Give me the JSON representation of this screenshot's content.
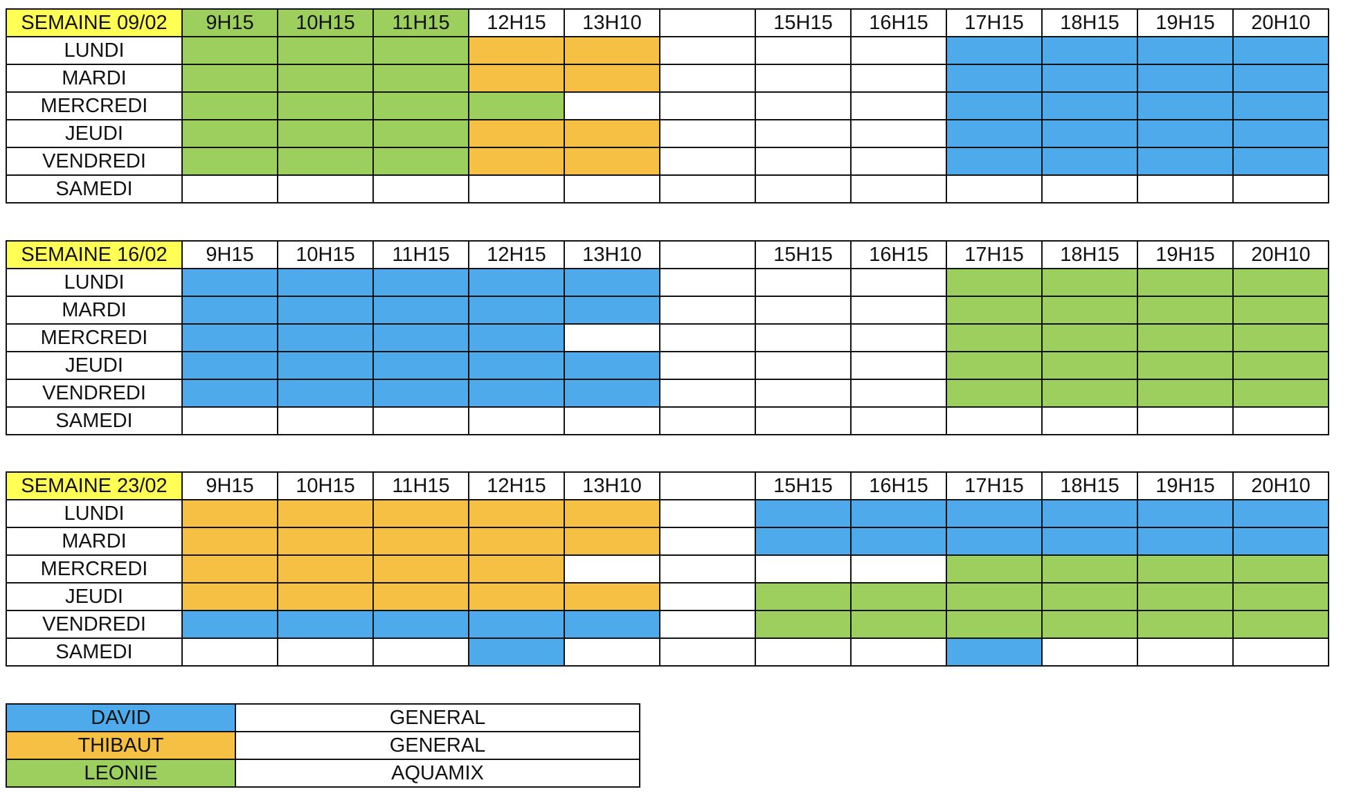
{
  "weeks": [
    {
      "label": "SEMAINE 09/02",
      "times": [
        "9H15",
        "10H15",
        "11H15",
        "12H15",
        "13H10",
        null,
        "15H15",
        "16H15",
        "17H15",
        "18H15",
        "19H15",
        "20H10"
      ],
      "rows": [
        {
          "day": "LUNDI",
          "cells": [
            2,
            2,
            2,
            1,
            1,
            null,
            null,
            null,
            0,
            0,
            0,
            0
          ]
        },
        {
          "day": "MARDI",
          "cells": [
            2,
            2,
            2,
            1,
            1,
            null,
            null,
            null,
            0,
            0,
            0,
            0
          ]
        },
        {
          "day": "MERCREDI",
          "cells": [
            2,
            2,
            2,
            2,
            null,
            null,
            null,
            null,
            0,
            0,
            0,
            0
          ]
        },
        {
          "day": "JEUDI",
          "cells": [
            2,
            2,
            2,
            1,
            1,
            null,
            null,
            null,
            0,
            0,
            0,
            0
          ]
        },
        {
          "day": "VENDREDI",
          "cells": [
            2,
            2,
            2,
            1,
            1,
            null,
            null,
            null,
            0,
            0,
            0,
            0
          ]
        },
        {
          "day": "SAMEDI",
          "cells": [
            null,
            null,
            null,
            null,
            null,
            null,
            null,
            null,
            null,
            null,
            null,
            null
          ]
        }
      ]
    },
    {
      "label": "SEMAINE 16/02",
      "times": [
        "9H15",
        "10H15",
        "11H15",
        "12H15",
        "13H10",
        null,
        "15H15",
        "16H15",
        "17H15",
        "18H15",
        "19H15",
        "20H10"
      ],
      "rows": [
        {
          "day": "LUNDI",
          "cells": [
            0,
            0,
            0,
            0,
            0,
            null,
            null,
            null,
            2,
            2,
            2,
            2
          ]
        },
        {
          "day": "MARDI",
          "cells": [
            0,
            0,
            0,
            0,
            0,
            null,
            null,
            null,
            2,
            2,
            2,
            2
          ]
        },
        {
          "day": "MERCREDI",
          "cells": [
            0,
            0,
            0,
            0,
            null,
            null,
            null,
            null,
            2,
            2,
            2,
            2
          ]
        },
        {
          "day": "JEUDI",
          "cells": [
            0,
            0,
            0,
            0,
            0,
            null,
            null,
            null,
            2,
            2,
            2,
            2
          ]
        },
        {
          "day": "VENDREDI",
          "cells": [
            0,
            0,
            0,
            0,
            0,
            null,
            null,
            null,
            2,
            2,
            2,
            2
          ]
        },
        {
          "day": "SAMEDI",
          "cells": [
            null,
            null,
            null,
            null,
            null,
            null,
            null,
            null,
            null,
            null,
            null,
            null
          ]
        }
      ]
    },
    {
      "label": "SEMAINE 23/02",
      "times": [
        "9H15",
        "10H15",
        "11H15",
        "12H15",
        "13H10",
        null,
        "15H15",
        "16H15",
        "17H15",
        "18H15",
        "19H15",
        "20H10"
      ],
      "rows": [
        {
          "day": "LUNDI",
          "cells": [
            1,
            1,
            1,
            1,
            1,
            null,
            0,
            0,
            0,
            0,
            0,
            0
          ]
        },
        {
          "day": "MARDI",
          "cells": [
            1,
            1,
            1,
            1,
            1,
            null,
            0,
            0,
            0,
            0,
            0,
            0
          ]
        },
        {
          "day": "MERCREDI",
          "cells": [
            1,
            1,
            1,
            1,
            null,
            null,
            null,
            null,
            2,
            2,
            2,
            2
          ]
        },
        {
          "day": "JEUDI",
          "cells": [
            1,
            1,
            1,
            1,
            1,
            null,
            2,
            2,
            2,
            2,
            2,
            2
          ]
        },
        {
          "day": "VENDREDI",
          "cells": [
            0,
            0,
            0,
            0,
            0,
            null,
            2,
            2,
            2,
            2,
            2,
            2
          ]
        },
        {
          "day": "SAMEDI",
          "cells": [
            null,
            null,
            null,
            0,
            null,
            null,
            null,
            null,
            0,
            null,
            null,
            null
          ]
        }
      ]
    }
  ],
  "legend": [
    {
      "name": "DAVID",
      "role": "GENERAL",
      "color": "#4eaaea"
    },
    {
      "name": "THIBAUT",
      "role": "GENERAL",
      "color": "#f5c043"
    },
    {
      "name": "LEONIE",
      "role": "AQUAMIX",
      "color": "#9ccf5e"
    }
  ]
}
